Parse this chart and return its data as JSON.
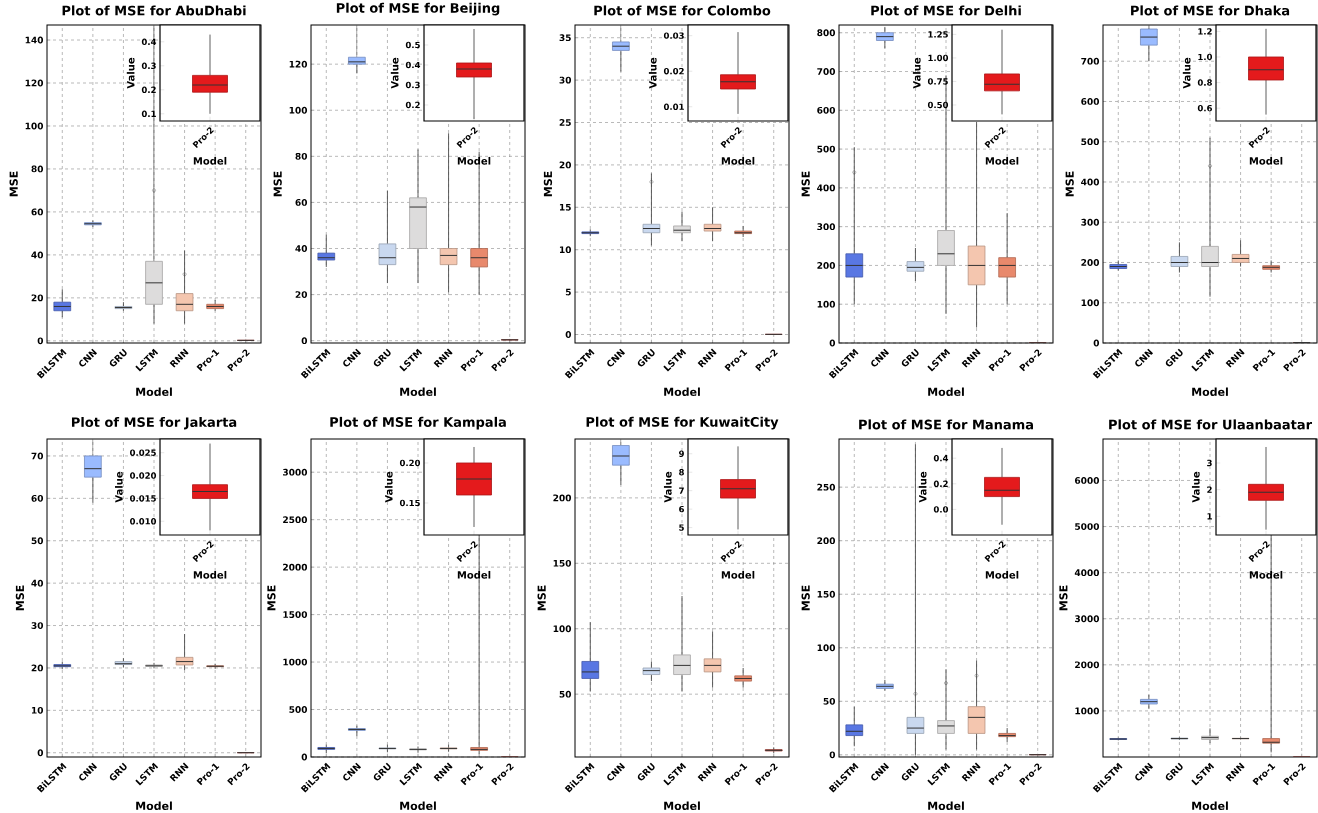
{
  "chart_data": [
    {
      "type": "box",
      "title": "Plot of MSE for AbuDhabi",
      "xlabel": "Model",
      "ylabel": "MSE",
      "categories": [
        "BiLSTM",
        "CNN",
        "GRU",
        "LSTM",
        "RNN",
        "Pro-1",
        "Pro-2"
      ],
      "colors": [
        "#5977e3",
        "#9abbff",
        "#c9d8ef",
        "#dddcdc",
        "#f4c6af",
        "#e8896c",
        "#d44e41"
      ],
      "grid": true,
      "ylim": [
        -1,
        147
      ],
      "yticks": [
        0,
        20,
        40,
        60,
        80,
        100,
        120,
        140
      ],
      "boxes": [
        {
          "low": 11,
          "q1": 14,
          "median": 16,
          "q3": 18,
          "high": 24
        },
        {
          "low": 53,
          "q1": 54,
          "median": 54.5,
          "q3": 55,
          "high": 56
        },
        {
          "low": 14,
          "q1": 15,
          "median": 15.5,
          "q3": 16,
          "high": 18
        },
        {
          "low": 8,
          "q1": 17,
          "median": 27,
          "q3": 37,
          "high": 147,
          "outliers": [
            70
          ]
        },
        {
          "low": 8,
          "q1": 14,
          "median": 17,
          "q3": 22,
          "high": 42,
          "outliers": [
            31
          ]
        },
        {
          "low": 14,
          "q1": 15,
          "median": 16,
          "q3": 17,
          "high": 19
        },
        {
          "low": 0.1,
          "q1": 0.19,
          "median": 0.22,
          "q3": 0.26,
          "high": 0.43
        }
      ]
    },
    {
      "type": "box",
      "xlabel": "Model",
      "ylabel": "Value",
      "categories": [
        "Pro-2"
      ],
      "colors": [
        "#e41a1c"
      ],
      "ylim": [
        0.07,
        0.47
      ],
      "yticks": [
        0.1,
        0.2,
        0.3,
        0.4
      ],
      "boxes": [
        {
          "low": 0.1,
          "q1": 0.19,
          "median": 0.22,
          "q3": 0.26,
          "high": 0.43
        }
      ]
    },
    {
      "type": "box",
      "title": "Plot of MSE for Beijing",
      "xlabel": "Model",
      "ylabel": "MSE",
      "categories": [
        "BiLSTM",
        "CNN",
        "GRU",
        "LSTM",
        "RNN",
        "Pro-1",
        "Pro-2"
      ],
      "colors": [
        "#5977e3",
        "#9abbff",
        "#c9d8ef",
        "#dddcdc",
        "#f4c6af",
        "#e8896c",
        "#d44e41"
      ],
      "grid": true,
      "ylim": [
        -1,
        137
      ],
      "yticks": [
        0,
        20,
        40,
        60,
        80,
        100,
        120
      ],
      "boxes": [
        {
          "low": 32,
          "q1": 35,
          "median": 36,
          "q3": 38,
          "high": 46
        },
        {
          "low": 116,
          "q1": 120,
          "median": 121,
          "q3": 123,
          "high": 137
        },
        {
          "low": 25,
          "q1": 33,
          "median": 36,
          "q3": 42,
          "high": 65
        },
        {
          "low": 25,
          "q1": 40,
          "median": 58,
          "q3": 62,
          "high": 83
        },
        {
          "low": 21,
          "q1": 33,
          "median": 37,
          "q3": 40,
          "high": 90
        },
        {
          "low": 20,
          "q1": 32,
          "median": 36,
          "q3": 40,
          "high": 82
        },
        {
          "low": 0.13,
          "q1": 0.34,
          "median": 0.38,
          "q3": 0.41,
          "high": 0.58
        }
      ]
    },
    {
      "type": "box",
      "xlabel": "Model",
      "ylabel": "Value",
      "categories": [
        "Pro-2"
      ],
      "colors": [
        "#e41a1c"
      ],
      "ylim": [
        0.12,
        0.6
      ],
      "yticks": [
        0.2,
        0.3,
        0.4,
        0.5
      ],
      "boxes": [
        {
          "low": 0.13,
          "q1": 0.34,
          "median": 0.38,
          "q3": 0.41,
          "high": 0.58
        }
      ]
    },
    {
      "type": "box",
      "title": "Plot of MSE for Colombo",
      "xlabel": "Model",
      "ylabel": "MSE",
      "categories": [
        "BiLSTM",
        "CNN",
        "GRU",
        "LSTM",
        "RNN",
        "Pro-1",
        "Pro-2"
      ],
      "colors": [
        "#5977e3",
        "#9abbff",
        "#c9d8ef",
        "#dddcdc",
        "#f4c6af",
        "#e8896c",
        "#d44e41"
      ],
      "grid": true,
      "ylim": [
        -1,
        36.5
      ],
      "yticks": [
        0,
        5,
        10,
        15,
        20,
        25,
        30,
        35
      ],
      "boxes": [
        {
          "low": 11.6,
          "q1": 11.9,
          "median": 12,
          "q3": 12.1,
          "high": 12.4
        },
        {
          "low": 31,
          "q1": 33.5,
          "median": 34,
          "q3": 34.5,
          "high": 36.5
        },
        {
          "low": 10.5,
          "q1": 12,
          "median": 12.5,
          "q3": 13,
          "high": 19,
          "outliers": [
            18
          ]
        },
        {
          "low": 11,
          "q1": 12,
          "median": 12.3,
          "q3": 12.8,
          "high": 14.5
        },
        {
          "low": 11,
          "q1": 12.2,
          "median": 12.5,
          "q3": 13,
          "high": 15
        },
        {
          "low": 11.5,
          "q1": 11.9,
          "median": 12,
          "q3": 12.2,
          "high": 12.8
        },
        {
          "low": 0.008,
          "q1": 0.015,
          "median": 0.017,
          "q3": 0.019,
          "high": 0.031
        }
      ]
    },
    {
      "type": "box",
      "xlabel": "Model",
      "ylabel": "Value",
      "categories": [
        "Pro-2"
      ],
      "colors": [
        "#e41a1c"
      ],
      "ylim": [
        0.006,
        0.033
      ],
      "yticks": [
        0.01,
        0.02,
        0.03
      ],
      "boxes": [
        {
          "low": 0.008,
          "q1": 0.015,
          "median": 0.017,
          "q3": 0.019,
          "high": 0.031
        }
      ]
    },
    {
      "type": "box",
      "title": "Plot of MSE for Delhi",
      "xlabel": "Model",
      "ylabel": "MSE",
      "categories": [
        "BiLSTM",
        "CNN",
        "GRU",
        "LSTM",
        "RNN",
        "Pro-1",
        "Pro-2"
      ],
      "colors": [
        "#5977e3",
        "#9abbff",
        "#c9d8ef",
        "#dddcdc",
        "#f4c6af",
        "#e8896c",
        "#d44e41"
      ],
      "grid": true,
      "ylim": [
        0,
        820
      ],
      "yticks": [
        0,
        100,
        200,
        300,
        400,
        500,
        600,
        700,
        800
      ],
      "boxes": [
        {
          "low": 100,
          "q1": 170,
          "median": 200,
          "q3": 230,
          "high": 505,
          "outliers": [
            440
          ]
        },
        {
          "low": 760,
          "q1": 780,
          "median": 790,
          "q3": 800,
          "high": 815
        },
        {
          "low": 160,
          "q1": 185,
          "median": 195,
          "q3": 210,
          "high": 245
        },
        {
          "low": 75,
          "q1": 200,
          "median": 230,
          "q3": 290,
          "high": 690
        },
        {
          "low": 40,
          "q1": 150,
          "median": 200,
          "q3": 250,
          "high": 570
        },
        {
          "low": 100,
          "q1": 170,
          "median": 200,
          "q3": 220,
          "high": 335
        },
        {
          "low": 0.4,
          "q1": 0.65,
          "median": 0.72,
          "q3": 0.83,
          "high": 1.3
        }
      ]
    },
    {
      "type": "box",
      "xlabel": "Model",
      "ylabel": "Value",
      "categories": [
        "Pro-2"
      ],
      "colors": [
        "#e41a1c"
      ],
      "ylim": [
        0.33,
        1.35
      ],
      "yticks": [
        {
          "value": 0.5,
          "label": "0.50"
        },
        {
          "value": 0.75,
          "label": "0.75"
        },
        {
          "value": 1.0,
          "label": "1.00"
        },
        {
          "value": 1.25,
          "label": "1.25"
        }
      ],
      "boxes": [
        {
          "low": 0.4,
          "q1": 0.65,
          "median": 0.72,
          "q3": 0.83,
          "high": 1.3
        }
      ]
    },
    {
      "type": "box",
      "title": "Plot of MSE for Dhaka",
      "xlabel": "Model",
      "ylabel": "MSE",
      "categories": [
        "BiLSTM",
        "CNN",
        "GRU",
        "LSTM",
        "RNN",
        "Pro-1",
        "Pro-2"
      ],
      "colors": [
        "#5977e3",
        "#9abbff",
        "#c9d8ef",
        "#dddcdc",
        "#f4c6af",
        "#e8896c",
        "#d44e41"
      ],
      "grid": true,
      "ylim": [
        0,
        790
      ],
      "yticks": [
        0,
        100,
        200,
        300,
        400,
        500,
        600,
        700
      ],
      "boxes": [
        {
          "low": 180,
          "q1": 185,
          "median": 190,
          "q3": 195,
          "high": 205
        },
        {
          "low": 700,
          "q1": 740,
          "median": 760,
          "q3": 780,
          "high": 790
        },
        {
          "low": 175,
          "q1": 190,
          "median": 200,
          "q3": 215,
          "high": 250
        },
        {
          "low": 115,
          "q1": 190,
          "median": 200,
          "q3": 240,
          "high": 510,
          "outliers": [
            440
          ]
        },
        {
          "low": 190,
          "q1": 200,
          "median": 210,
          "q3": 220,
          "high": 255
        },
        {
          "low": 175,
          "q1": 183,
          "median": 188,
          "q3": 192,
          "high": 205
        },
        {
          "low": 0.55,
          "q1": 0.82,
          "median": 0.9,
          "q3": 1.0,
          "high": 1.22
        }
      ]
    },
    {
      "type": "box",
      "xlabel": "Model",
      "ylabel": "Value",
      "categories": [
        "Pro-2"
      ],
      "colors": [
        "#e41a1c"
      ],
      "ylim": [
        0.5,
        1.25
      ],
      "yticks": [
        0.6,
        0.8,
        {
          "value": 1.0,
          "label": "1.0"
        },
        1.2
      ],
      "boxes": [
        {
          "low": 0.55,
          "q1": 0.82,
          "median": 0.9,
          "q3": 1.0,
          "high": 1.22
        }
      ]
    },
    {
      "type": "box",
      "title": "Plot of MSE for Jakarta",
      "xlabel": "Model",
      "ylabel": "MSE",
      "categories": [
        "BiLSTM",
        "CNN",
        "GRU",
        "LSTM",
        "RNN",
        "Pro-1",
        "Pro-2"
      ],
      "colors": [
        "#5977e3",
        "#9abbff",
        "#c9d8ef",
        "#dddcdc",
        "#f4c6af",
        "#e8896c",
        "#d44e41"
      ],
      "grid": true,
      "ylim": [
        -1,
        74
      ],
      "yticks": [
        0,
        10,
        20,
        30,
        40,
        50,
        60,
        70
      ],
      "boxes": [
        {
          "low": 19.7,
          "q1": 20.3,
          "median": 20.5,
          "q3": 20.8,
          "high": 21.5
        },
        {
          "low": 59,
          "q1": 65,
          "median": 67,
          "q3": 70,
          "high": 74
        },
        {
          "low": 20.1,
          "q1": 20.8,
          "median": 21,
          "q3": 21.5,
          "high": 22.3
        },
        {
          "low": 19.9,
          "q1": 20.4,
          "median": 20.5,
          "q3": 20.7,
          "high": 21.2
        },
        {
          "low": 19.5,
          "q1": 20.7,
          "median": 21.5,
          "q3": 22.5,
          "high": 28
        },
        {
          "low": 19.8,
          "q1": 20.3,
          "median": 20.4,
          "q3": 20.5,
          "high": 21
        },
        {
          "low": 0.008,
          "q1": 0.015,
          "median": 0.0165,
          "q3": 0.018,
          "high": 0.027
        }
      ]
    },
    {
      "type": "box",
      "xlabel": "Model",
      "ylabel": "Value",
      "categories": [
        "Pro-2"
      ],
      "colors": [
        "#e41a1c"
      ],
      "ylim": [
        0.007,
        0.028
      ],
      "yticks": [
        {
          "value": 0.01,
          "label": "0.010"
        },
        {
          "value": 0.015,
          "label": "0.015"
        },
        {
          "value": 0.02,
          "label": "0.020"
        },
        {
          "value": 0.025,
          "label": "0.025"
        }
      ],
      "boxes": [
        {
          "low": 0.008,
          "q1": 0.015,
          "median": 0.0165,
          "q3": 0.018,
          "high": 0.027
        }
      ]
    },
    {
      "type": "box",
      "title": "Plot of MSE for Kampala",
      "xlabel": "Model",
      "ylabel": "MSE",
      "categories": [
        "BiLSTM",
        "CNN",
        "GRU",
        "LSTM",
        "RNN",
        "Pro-1",
        "Pro-2"
      ],
      "colors": [
        "#5977e3",
        "#9abbff",
        "#c9d8ef",
        "#dddcdc",
        "#f4c6af",
        "#e8896c",
        "#d44e41"
      ],
      "grid": true,
      "ylim": [
        0,
        3350
      ],
      "yticks": [
        0,
        500,
        1000,
        1500,
        2000,
        2500,
        3000
      ],
      "boxes": [
        {
          "low": 40,
          "q1": 80,
          "median": 90,
          "q3": 100,
          "high": 130
        },
        {
          "low": 220,
          "q1": 280,
          "median": 290,
          "q3": 300,
          "high": 330
        },
        {
          "low": 50,
          "q1": 85,
          "median": 90,
          "q3": 95,
          "high": 130
        },
        {
          "low": 45,
          "q1": 75,
          "median": 80,
          "q3": 85,
          "high": 110
        },
        {
          "low": 55,
          "q1": 85,
          "median": 90,
          "q3": 95,
          "high": 130
        },
        {
          "low": 30,
          "q1": 70,
          "median": 80,
          "q3": 100,
          "high": 3300
        },
        {
          "low": 0.12,
          "q1": 0.16,
          "median": 0.18,
          "q3": 0.2,
          "high": 0.22
        }
      ]
    },
    {
      "type": "box",
      "xlabel": "Model",
      "ylabel": "Value",
      "categories": [
        "Pro-2"
      ],
      "colors": [
        "#e41a1c"
      ],
      "ylim": [
        0.11,
        0.23
      ],
      "yticks": [
        0.15,
        {
          "value": 0.2,
          "label": "0.20"
        }
      ],
      "boxes": [
        {
          "low": 0.12,
          "q1": 0.16,
          "median": 0.18,
          "q3": 0.2,
          "high": 0.22
        }
      ]
    },
    {
      "type": "box",
      "title": "Plot of MSE for KuwaitCity",
      "xlabel": "Model",
      "ylabel": "MSE",
      "categories": [
        "BiLSTM",
        "CNN",
        "GRU",
        "LSTM",
        "RNN",
        "Pro-1",
        "Pro-2"
      ],
      "colors": [
        "#5977e3",
        "#9abbff",
        "#c9d8ef",
        "#dddcdc",
        "#f4c6af",
        "#e8896c",
        "#d44e41"
      ],
      "grid": true,
      "ylim": [
        2,
        245
      ],
      "yticks": [
        50,
        100,
        150,
        200
      ],
      "boxes": [
        {
          "low": 52,
          "q1": 62,
          "median": 67,
          "q3": 75,
          "high": 105
        },
        {
          "low": 210,
          "q1": 225,
          "median": 232,
          "q3": 240,
          "high": 245
        },
        {
          "low": 60,
          "q1": 65,
          "median": 68,
          "q3": 70,
          "high": 75
        },
        {
          "low": 52,
          "q1": 65,
          "median": 72,
          "q3": 80,
          "high": 125
        },
        {
          "low": 55,
          "q1": 67,
          "median": 72,
          "q3": 77,
          "high": 98
        },
        {
          "low": 55,
          "q1": 60,
          "median": 62,
          "q3": 64,
          "high": 70
        },
        {
          "low": 4.9,
          "q1": 6.6,
          "median": 7.1,
          "q3": 7.6,
          "high": 9.4
        }
      ]
    },
    {
      "type": "box",
      "xlabel": "Model",
      "ylabel": "Value",
      "categories": [
        "Pro-2"
      ],
      "colors": [
        "#e41a1c"
      ],
      "ylim": [
        4.6,
        9.8
      ],
      "yticks": [
        5,
        6,
        7,
        8,
        9
      ],
      "boxes": [
        {
          "low": 4.9,
          "q1": 6.6,
          "median": 7.1,
          "q3": 7.6,
          "high": 9.4
        }
      ]
    },
    {
      "type": "box",
      "title": "Plot of MSE for Manama",
      "xlabel": "Model",
      "ylabel": "MSE",
      "categories": [
        "BiLSTM",
        "CNN",
        "GRU",
        "LSTM",
        "RNN",
        "Pro-1",
        "Pro-2"
      ],
      "colors": [
        "#5977e3",
        "#9abbff",
        "#c9d8ef",
        "#dddcdc",
        "#f4c6af",
        "#e8896c",
        "#d44e41"
      ],
      "grid": true,
      "ylim": [
        -2,
        295
      ],
      "yticks": [
        0,
        50,
        100,
        150,
        200,
        250
      ],
      "boxes": [
        {
          "low": 8,
          "q1": 18,
          "median": 22,
          "q3": 28,
          "high": 45
        },
        {
          "low": 60,
          "q1": 62,
          "median": 64,
          "q3": 66,
          "high": 70
        },
        {
          "low": 0,
          "q1": 20,
          "median": 25,
          "q3": 35,
          "high": 290,
          "outliers": [
            57
          ]
        },
        {
          "low": 5,
          "q1": 20,
          "median": 27,
          "q3": 32,
          "high": 80,
          "outliers": [
            67
          ]
        },
        {
          "low": 5,
          "q1": 20,
          "median": 35,
          "q3": 45,
          "high": 88,
          "outliers": [
            74
          ]
        },
        {
          "low": 12,
          "q1": 17,
          "median": 18,
          "q3": 20,
          "high": 25
        },
        {
          "low": -0.12,
          "q1": 0.1,
          "median": 0.15,
          "q3": 0.25,
          "high": 0.48
        }
      ]
    },
    {
      "type": "box",
      "xlabel": "Model",
      "ylabel": "Value",
      "categories": [
        "Pro-2"
      ],
      "colors": [
        "#e41a1c"
      ],
      "ylim": [
        -0.2,
        0.55
      ],
      "yticks": [
        {
          "value": 0,
          "label": "0.0"
        },
        0.2,
        0.4
      ],
      "boxes": [
        {
          "low": -0.12,
          "q1": 0.1,
          "median": 0.15,
          "q3": 0.25,
          "high": 0.48
        }
      ]
    },
    {
      "type": "box",
      "title": "Plot of MSE for Ulaanbaatar",
      "xlabel": "Model",
      "ylabel": "MSE",
      "categories": [
        "BiLSTM",
        "CNN",
        "GRU",
        "LSTM",
        "RNN",
        "Pro-1",
        "Pro-2"
      ],
      "colors": [
        "#5977e3",
        "#9abbff",
        "#c9d8ef",
        "#dddcdc",
        "#f4c6af",
        "#e8896c",
        "#d44e41"
      ],
      "grid": true,
      "ylim": [
        0,
        6900
      ],
      "yticks": [
        1000,
        2000,
        3000,
        4000,
        5000,
        6000
      ],
      "boxes": [
        {
          "low": 360,
          "q1": 380,
          "median": 390,
          "q3": 400,
          "high": 420
        },
        {
          "low": 1050,
          "q1": 1150,
          "median": 1200,
          "q3": 1250,
          "high": 1350
        },
        {
          "low": 370,
          "q1": 390,
          "median": 400,
          "q3": 410,
          "high": 430
        },
        {
          "low": 300,
          "q1": 380,
          "median": 420,
          "q3": 450,
          "high": 620
        },
        {
          "low": 380,
          "q1": 395,
          "median": 400,
          "q3": 405,
          "high": 420
        },
        {
          "low": 100,
          "q1": 300,
          "median": 320,
          "q3": 400,
          "high": 6800
        },
        {
          "low": 0.5,
          "q1": 1.6,
          "median": 1.9,
          "q3": 2.2,
          "high": 3.6
        }
      ]
    },
    {
      "type": "box",
      "xlabel": "Model",
      "ylabel": "Value",
      "categories": [
        "Pro-2"
      ],
      "colors": [
        "#e41a1c"
      ],
      "ylim": [
        0.3,
        3.9
      ],
      "yticks": [
        1,
        2,
        3
      ],
      "boxes": [
        {
          "low": 0.5,
          "q1": 1.6,
          "median": 1.9,
          "q3": 2.2,
          "high": 3.6
        }
      ]
    }
  ]
}
